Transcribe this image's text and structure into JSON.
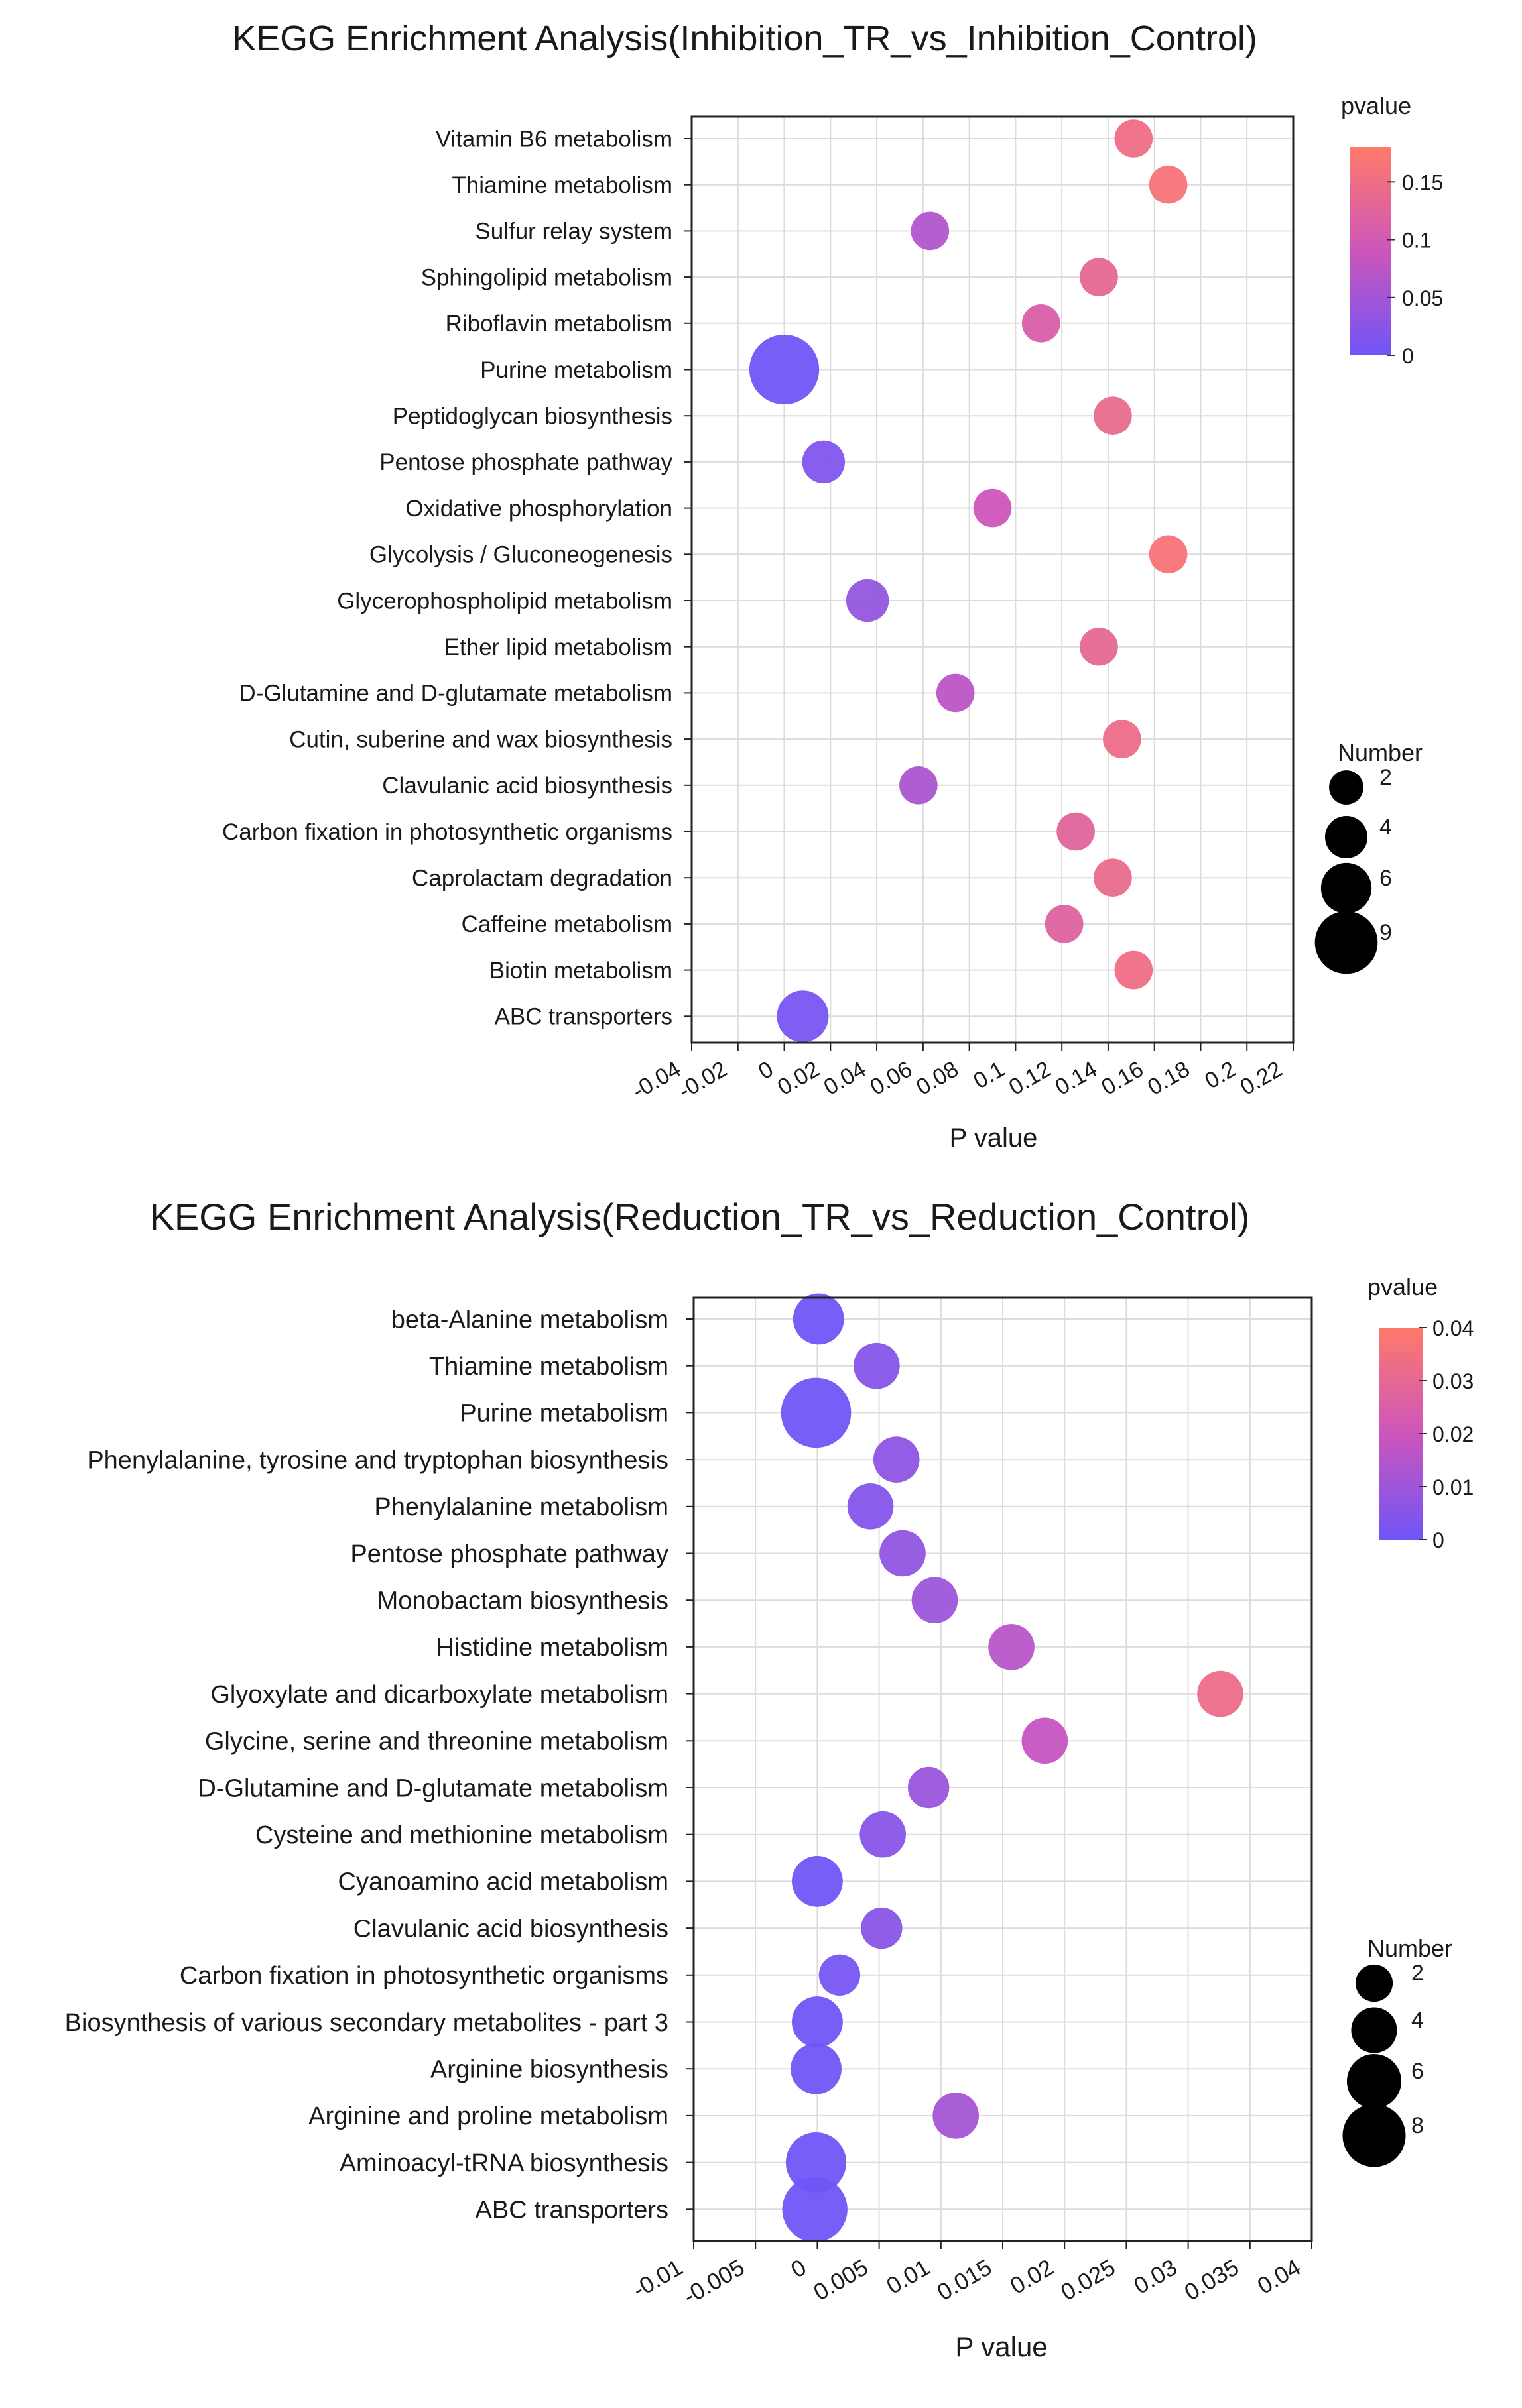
{
  "chart_data": [
    {
      "type": "scatter",
      "title": "KEGG Enrichment Analysis(Inhibition_TR_vs_Inhibition_Control)",
      "xlabel": "P value",
      "ylabel": "",
      "xlim": [
        -0.04,
        0.22
      ],
      "x_ticks": [
        "-0.04",
        "-0.02",
        "0",
        "0.02",
        "0.04",
        "0.06",
        "0.08",
        "0.1",
        "0.12",
        "0.14",
        "0.16",
        "0.18",
        "0.2",
        "0.22"
      ],
      "x_tick_values": [
        -0.04,
        -0.02,
        0,
        0.02,
        0.04,
        0.06,
        0.08,
        0.1,
        0.12,
        0.14,
        0.16,
        0.18,
        0.2,
        0.22
      ],
      "grid": true,
      "color_legend": {
        "title": "pvalue",
        "min": 0,
        "max": 0.18,
        "ticks": [
          "0",
          "0.05",
          "0.1",
          "0.15"
        ],
        "tick_values": [
          0,
          0.05,
          0.1,
          0.15
        ],
        "low_color": "#7055f7",
        "mid_color": "#cc55bb",
        "high_color": "#ff7a6a"
      },
      "size_legend": {
        "title": "Number",
        "labels": [
          "2",
          "4",
          "6",
          "9"
        ],
        "values": [
          2,
          4,
          6,
          9
        ]
      },
      "categories": [
        "Vitamin B6 metabolism",
        "Thiamine metabolism",
        "Sulfur relay system",
        "Sphingolipid metabolism",
        "Riboflavin metabolism",
        "Purine metabolism",
        "Peptidoglycan biosynthesis",
        "Pentose phosphate pathway",
        "Oxidative phosphorylation",
        "Glycolysis / Gluconeogenesis",
        "Glycerophospholipid metabolism",
        "Ether lipid metabolism",
        "D-Glutamine and D-glutamate metabolism",
        "Cutin, suberine and wax biosynthesis",
        "Clavulanic acid biosynthesis",
        "Carbon fixation in photosynthetic organisms",
        "Caprolactam degradation",
        "Caffeine metabolism",
        "Biotin metabolism",
        "ABC transporters"
      ],
      "points": [
        {
          "category": "Vitamin B6 metabolism",
          "x": 0.151,
          "number": 2
        },
        {
          "category": "Thiamine metabolism",
          "x": 0.166,
          "number": 2
        },
        {
          "category": "Sulfur relay system",
          "x": 0.063,
          "number": 2
        },
        {
          "category": "Sphingolipid metabolism",
          "x": 0.136,
          "number": 2
        },
        {
          "category": "Riboflavin metabolism",
          "x": 0.111,
          "number": 2
        },
        {
          "category": "Purine metabolism",
          "x": 0,
          "number": 9
        },
        {
          "category": "Peptidoglycan biosynthesis",
          "x": 0.142,
          "number": 2
        },
        {
          "category": "Pentose phosphate pathway",
          "x": 0.017,
          "number": 3
        },
        {
          "category": "Oxidative phosphorylation",
          "x": 0.09,
          "number": 2
        },
        {
          "category": "Glycolysis / Gluconeogenesis",
          "x": 0.166,
          "number": 2
        },
        {
          "category": "Glycerophospholipid metabolism",
          "x": 0.036,
          "number": 3
        },
        {
          "category": "Ether lipid metabolism",
          "x": 0.136,
          "number": 2
        },
        {
          "category": "D-Glutamine and D-glutamate metabolism",
          "x": 0.074,
          "number": 2
        },
        {
          "category": "Cutin, suberine and wax biosynthesis",
          "x": 0.146,
          "number": 2
        },
        {
          "category": "Clavulanic acid biosynthesis",
          "x": 0.058,
          "number": 2
        },
        {
          "category": "Carbon fixation in photosynthetic organisms",
          "x": 0.126,
          "number": 2
        },
        {
          "category": "Caprolactam degradation",
          "x": 0.142,
          "number": 2
        },
        {
          "category": "Caffeine metabolism",
          "x": 0.121,
          "number": 2
        },
        {
          "category": "Biotin metabolism",
          "x": 0.151,
          "number": 2
        },
        {
          "category": "ABC transporters",
          "x": 0.008,
          "number": 5
        }
      ]
    },
    {
      "type": "scatter",
      "title": "KEGG Enrichment Analysis(Reduction_TR_vs_Reduction_Control)",
      "xlabel": "P value",
      "ylabel": "",
      "xlim": [
        -0.01,
        0.04
      ],
      "x_ticks": [
        "-0.01",
        "-0.005",
        "0",
        "0.005",
        "0.01",
        "0.015",
        "0.02",
        "0.025",
        "0.03",
        "0.035",
        "0.04"
      ],
      "x_tick_values": [
        -0.01,
        -0.005,
        0,
        0.005,
        0.01,
        0.015,
        0.02,
        0.025,
        0.03,
        0.035,
        0.04
      ],
      "grid": true,
      "color_legend": {
        "title": "pvalue",
        "min": 0,
        "max": 0.04,
        "ticks": [
          "0",
          "0.01",
          "0.02",
          "0.03",
          "0.04"
        ],
        "tick_values": [
          0,
          0.01,
          0.02,
          0.03,
          0.04
        ],
        "low_color": "#7055f7",
        "mid_color": "#cc55bb",
        "high_color": "#ff7a6a"
      },
      "size_legend": {
        "title": "Number",
        "labels": [
          "2",
          "4",
          "6",
          "8"
        ],
        "values": [
          2,
          4,
          6,
          8
        ]
      },
      "categories": [
        "beta-Alanine metabolism",
        "Thiamine metabolism",
        "Purine metabolism",
        "Phenylalanine, tyrosine and tryptophan biosynthesis",
        "Phenylalanine metabolism",
        "Pentose phosphate pathway",
        "Monobactam biosynthesis",
        "Histidine metabolism",
        "Glyoxylate and dicarboxylate metabolism",
        "Glycine, serine and threonine metabolism",
        "D-Glutamine and D-glutamate metabolism",
        "Cysteine and methionine metabolism",
        "Cyanoamino acid metabolism",
        "Clavulanic acid biosynthesis",
        "Carbon fixation in photosynthetic organisms",
        "Biosynthesis of various secondary metabolites - part 3",
        "Arginine biosynthesis",
        "Arginine and proline metabolism",
        "Aminoacyl-tRNA biosynthesis",
        "ABC transporters"
      ],
      "points": [
        {
          "category": "beta-Alanine metabolism",
          "x": 0.0001,
          "number": 4
        },
        {
          "category": "Thiamine metabolism",
          "x": 0.0048,
          "number": 3
        },
        {
          "category": "Purine metabolism",
          "x": -0.0001,
          "number": 8
        },
        {
          "category": "Phenylalanine, tyrosine and tryptophan biosynthesis",
          "x": 0.0064,
          "number": 3
        },
        {
          "category": "Phenylalanine metabolism",
          "x": 0.0043,
          "number": 3
        },
        {
          "category": "Pentose phosphate pathway",
          "x": 0.0069,
          "number": 3
        },
        {
          "category": "Monobactam biosynthesis",
          "x": 0.0095,
          "number": 3
        },
        {
          "category": "Histidine metabolism",
          "x": 0.0157,
          "number": 3
        },
        {
          "category": "Glyoxylate and dicarboxylate metabolism",
          "x": 0.0326,
          "number": 3
        },
        {
          "category": "Glycine, serine and threonine metabolism",
          "x": 0.0184,
          "number": 3
        },
        {
          "category": "D-Glutamine and D-glutamate metabolism",
          "x": 0.009,
          "number": 2
        },
        {
          "category": "Cysteine and methionine metabolism",
          "x": 0.0053,
          "number": 3
        },
        {
          "category": "Cyanoamino acid metabolism",
          "x": 0,
          "number": 4
        },
        {
          "category": "Clavulanic acid biosynthesis",
          "x": 0.0052,
          "number": 2
        },
        {
          "category": "Carbon fixation in photosynthetic organisms",
          "x": 0.0018,
          "number": 2
        },
        {
          "category": "Biosynthesis of various secondary metabolites - part 3",
          "x": 0,
          "number": 4
        },
        {
          "category": "Arginine biosynthesis",
          "x": -0.0001,
          "number": 4
        },
        {
          "category": "Arginine and proline metabolism",
          "x": 0.0112,
          "number": 3
        },
        {
          "category": "Aminoacyl-tRNA biosynthesis",
          "x": -0.0001,
          "number": 6
        },
        {
          "category": "ABC transporters",
          "x": -0.0002,
          "number": 7
        }
      ]
    }
  ]
}
